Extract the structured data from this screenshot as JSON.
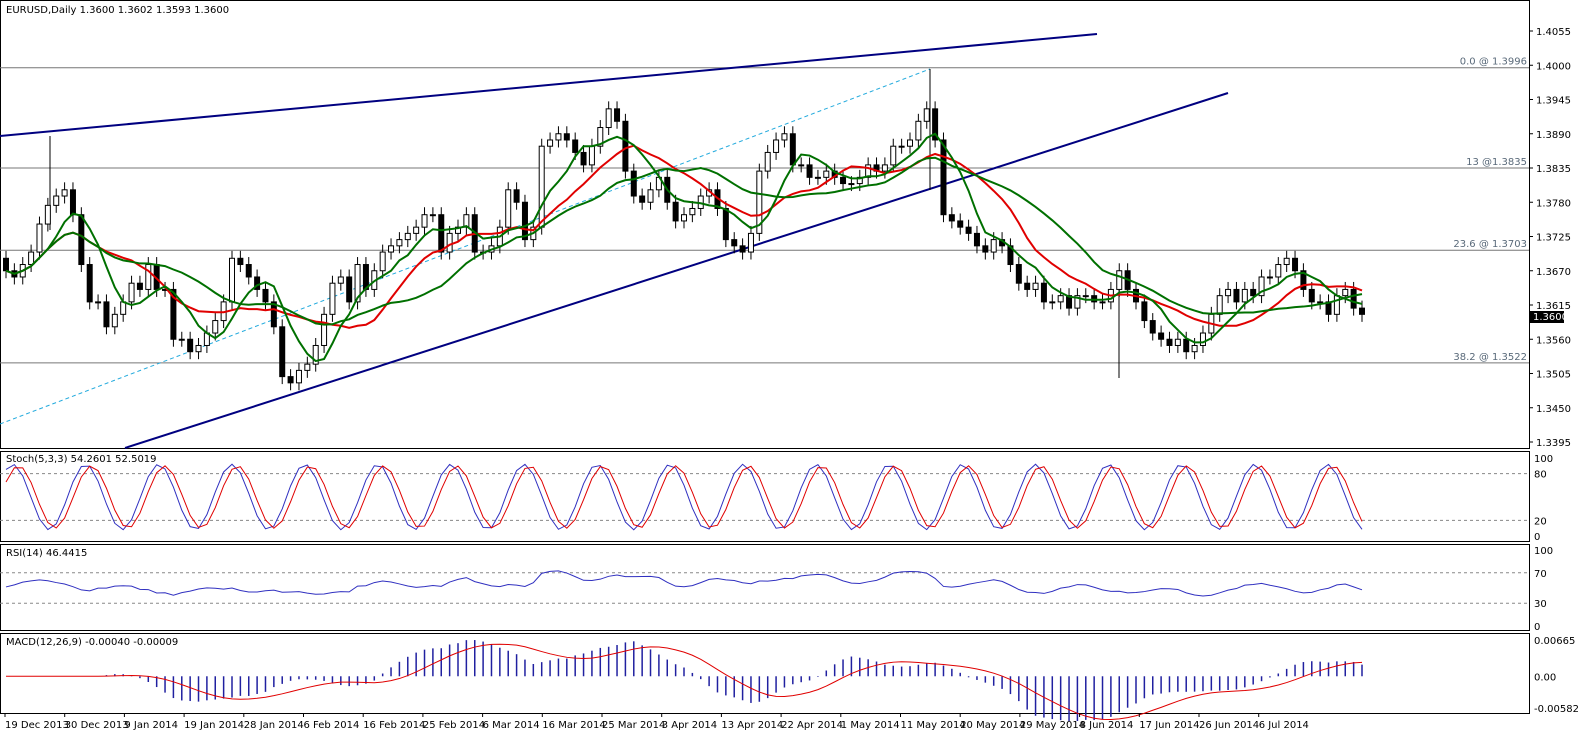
{
  "window": {
    "symbol_line": "EURUSD,Daily  1.3600 1.3602 1.3593 1.3600"
  },
  "colors": {
    "bull_candle": "#ffffff",
    "bear_candle": "#000000",
    "sma_red": "#e00000",
    "sma_green": "#007000",
    "sma_flat": "#ffe000",
    "trendline": "#000080",
    "fib_channel": "#22aadd",
    "stoch_main": "#3030c0",
    "stoch_signal": "#e00000",
    "rsi": "#3030c0",
    "macd_hist": "#2020a0",
    "macd_signal": "#e00000",
    "current_price_bg": "#000000"
  },
  "price_panel": {
    "ylim": [
      1.338,
      1.408
    ],
    "y_ticks": [
      "1.4055",
      "1.4000",
      "1.3945",
      "1.3890",
      "1.3835",
      "1.3780",
      "1.3725",
      "1.3670",
      "1.3615",
      "1.3560",
      "1.3505",
      "1.3450",
      "1.3395"
    ],
    "current_price": "1.3600",
    "fib_levels": [
      {
        "label": "0.0 @ 1.3996",
        "value": 1.3996
      },
      {
        "label": "13 @1.3835",
        "value": 1.3835
      },
      {
        "label": "23.6 @ 1.3703",
        "value": 1.3703
      },
      {
        "label": "38.2 @ 1.3522",
        "value": 1.3522
      }
    ]
  },
  "stoch_panel": {
    "title": "Stoch(5,3,3) 54.2601 52.5019",
    "ticks": [
      "100",
      "80",
      "20",
      "0"
    ],
    "levels": [
      80,
      20
    ]
  },
  "rsi_panel": {
    "title": "RSI(14) 46.4415",
    "ticks": [
      "100",
      "70",
      "30",
      "0"
    ],
    "levels": [
      70,
      30
    ]
  },
  "macd_panel": {
    "title": "MACD(12,26,9) -0.00040 -0.00009",
    "ticks": [
      "0.00665",
      "0.00",
      "-0.00582"
    ],
    "ylim": [
      -0.00582,
      0.00665
    ]
  },
  "x_axis": {
    "labels": [
      "19 Dec 2013",
      "30 Dec 2013",
      "9 Jan 2014",
      "19 Jan 2014",
      "28 Jan 2014",
      "6 Feb 2014",
      "16 Feb 2014",
      "25 Feb 2014",
      "6 Mar 2014",
      "16 Mar 2014",
      "25 Mar 2014",
      "3 Apr 2014",
      "13 Apr 2014",
      "22 Apr 2014",
      "1 May 2014",
      "11 May 2014",
      "20 May 2014",
      "29 May 2014",
      "8 Jun 2014",
      "17 Jun 2014",
      "26 Jun 2014",
      "6 Jul 2014"
    ]
  },
  "chart_data": {
    "type": "candlestick",
    "title": "EURUSD,Daily",
    "candles_close": [
      1.367,
      1.366,
      1.368,
      1.37,
      1.3745,
      1.3775,
      1.379,
      1.38,
      1.376,
      1.368,
      1.362,
      1.362,
      1.358,
      1.36,
      1.362,
      1.365,
      1.364,
      1.368,
      1.364,
      1.364,
      1.356,
      1.356,
      1.354,
      1.355,
      1.357,
      1.359,
      1.362,
      1.369,
      1.368,
      1.366,
      1.364,
      1.362,
      1.358,
      1.35,
      1.349,
      1.351,
      1.352,
      1.355,
      1.36,
      1.365,
      1.366,
      1.362,
      1.368,
      1.364,
      1.367,
      1.37,
      1.371,
      1.372,
      1.373,
      1.374,
      1.376,
      1.376,
      1.37,
      1.373,
      1.374,
      1.376,
      1.37,
      1.37,
      1.371,
      1.374,
      1.38,
      1.378,
      1.372,
      1.374,
      1.387,
      1.388,
      1.389,
      1.388,
      1.386,
      1.384,
      1.387,
      1.39,
      1.393,
      1.391,
      1.383,
      1.379,
      1.378,
      1.38,
      1.382,
      1.378,
      1.375,
      1.376,
      1.377,
      1.379,
      1.38,
      1.377,
      1.372,
      1.371,
      1.37,
      1.373,
      1.383,
      1.386,
      1.388,
      1.389,
      1.384,
      1.384,
      1.382,
      1.382,
      1.383,
      1.382,
      1.381,
      1.381,
      1.382,
      1.384,
      1.383,
      1.384,
      1.387,
      1.387,
      1.388,
      1.391,
      1.393,
      1.388,
      1.376,
      1.375,
      1.374,
      1.373,
      1.371,
      1.37,
      1.372,
      1.371,
      1.368,
      1.365,
      1.364,
      1.365,
      1.362,
      1.362,
      1.363,
      1.361,
      1.363,
      1.363,
      1.362,
      1.362,
      1.364,
      1.367,
      1.364,
      1.362,
      1.359,
      1.357,
      1.356,
      1.355,
      1.356,
      1.354,
      1.355,
      1.357,
      1.36,
      1.363,
      1.364,
      1.362,
      1.364,
      1.363,
      1.366,
      1.366,
      1.368,
      1.369,
      1.367,
      1.364,
      1.362,
      1.362,
      1.36,
      1.363,
      1.364,
      1.361,
      1.36
    ],
    "x_labels": [
      "19 Dec 2013",
      "30 Dec 2013",
      "9 Jan 2014",
      "19 Jan 2014",
      "28 Jan 2014",
      "6 Feb 2014",
      "16 Feb 2014",
      "25 Feb 2014",
      "6 Mar 2014",
      "16 Mar 2014",
      "25 Mar 2014",
      "3 Apr 2014",
      "13 Apr 2014",
      "22 Apr 2014",
      "1 May 2014",
      "11 May 2014",
      "20 May 2014",
      "29 May 2014",
      "8 Jun 2014",
      "17 Jun 2014",
      "26 Jun 2014",
      "6 Jul 2014"
    ],
    "ylim": [
      1.338,
      1.408
    ]
  }
}
